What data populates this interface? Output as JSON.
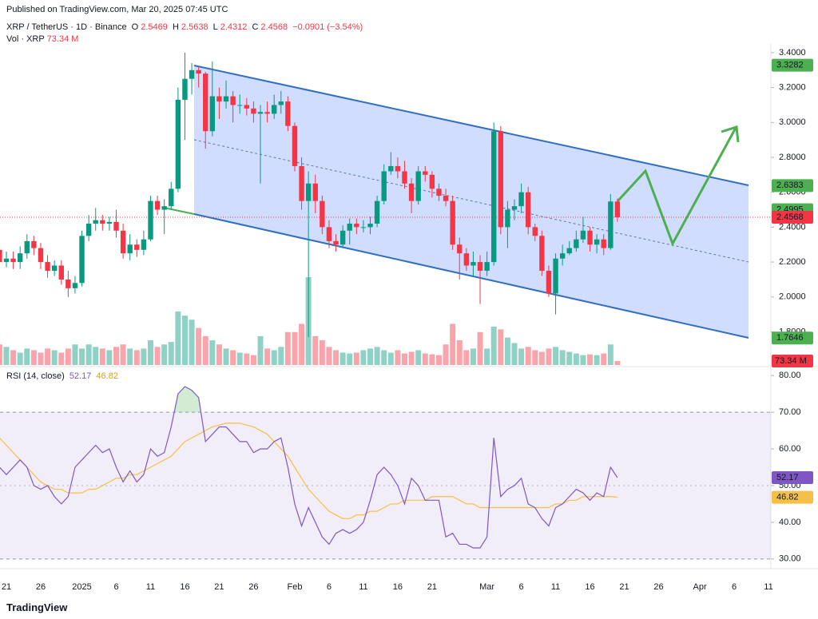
{
  "published": "Published on TradingView.com, Mar 20, 2025 07:45 UTC",
  "footer": "TradingView",
  "chart_data": [
    {
      "type": "candlestick",
      "title": "XRP / TetherUS · 1D · Binance",
      "ohlc_letters": [
        "O",
        "H",
        "L",
        "C"
      ],
      "change": "−0.0901 (−3.54%)",
      "up_color": "#089981",
      "down_color": "#f23645",
      "x": [
        "2024-12-20",
        "2024-12-21",
        "2024-12-22",
        "2024-12-23",
        "2024-12-24",
        "2024-12-25",
        "2024-12-26",
        "2024-12-27",
        "2024-12-28",
        "2024-12-29",
        "2024-12-30",
        "2024-12-31",
        "2025-01-01",
        "2025-01-02",
        "2025-01-03",
        "2025-01-04",
        "2025-01-05",
        "2025-01-06",
        "2025-01-07",
        "2025-01-08",
        "2025-01-09",
        "2025-01-10",
        "2025-01-11",
        "2025-01-12",
        "2025-01-13",
        "2025-01-14",
        "2025-01-15",
        "2025-01-16",
        "2025-01-17",
        "2025-01-18",
        "2025-01-19",
        "2025-01-20",
        "2025-01-21",
        "2025-01-22",
        "2025-01-23",
        "2025-01-24",
        "2025-01-25",
        "2025-01-26",
        "2025-01-27",
        "2025-01-28",
        "2025-01-29",
        "2025-01-30",
        "2025-01-31",
        "2025-02-01",
        "2025-02-02",
        "2025-02-03",
        "2025-02-04",
        "2025-02-05",
        "2025-02-06",
        "2025-02-07",
        "2025-02-08",
        "2025-02-09",
        "2025-02-10",
        "2025-02-11",
        "2025-02-12",
        "2025-02-13",
        "2025-02-14",
        "2025-02-15",
        "2025-02-16",
        "2025-02-17",
        "2025-02-18",
        "2025-02-19",
        "2025-02-20",
        "2025-02-21",
        "2025-02-22",
        "2025-02-23",
        "2025-02-24",
        "2025-02-25",
        "2025-02-26",
        "2025-02-27",
        "2025-02-28",
        "2025-03-01",
        "2025-03-02",
        "2025-03-03",
        "2025-03-04",
        "2025-03-05",
        "2025-03-06",
        "2025-03-07",
        "2025-03-08",
        "2025-03-09",
        "2025-03-10",
        "2025-03-11",
        "2025-03-12",
        "2025-03-13",
        "2025-03-14",
        "2025-03-15",
        "2025-03-16",
        "2025-03-17",
        "2025-03-18",
        "2025-03-19",
        "2025-03-20"
      ],
      "open": [
        2.27,
        2.2,
        2.22,
        2.2,
        2.25,
        2.32,
        2.28,
        2.2,
        2.15,
        2.18,
        2.1,
        2.05,
        2.08,
        2.35,
        2.42,
        2.44,
        2.42,
        2.43,
        2.38,
        2.25,
        2.3,
        2.27,
        2.33,
        2.55,
        2.5,
        2.52,
        2.62,
        3.13,
        3.25,
        3.3,
        3.28,
        2.95,
        3.15,
        3.12,
        3.15,
        3.1,
        3.1,
        3.08,
        3.05,
        3.06,
        3.05,
        3.1,
        3.12,
        2.98,
        2.75,
        2.55,
        2.65,
        2.55,
        2.4,
        2.32,
        2.3,
        2.38,
        2.42,
        2.4,
        2.4,
        2.42,
        2.55,
        2.72,
        2.75,
        2.72,
        2.65,
        2.55,
        2.72,
        2.7,
        2.62,
        2.58,
        2.55,
        2.3,
        2.25,
        2.18,
        2.2,
        2.15,
        2.2,
        2.95,
        2.4,
        2.5,
        2.52,
        2.6,
        2.4,
        2.35,
        2.15,
        2.02,
        2.22,
        2.25,
        2.28,
        2.33,
        2.38,
        2.3,
        2.33,
        2.28,
        2.5469
      ],
      "high": [
        2.3,
        2.26,
        2.26,
        2.29,
        2.36,
        2.35,
        2.31,
        2.24,
        2.21,
        2.21,
        2.15,
        2.12,
        2.38,
        2.47,
        2.51,
        2.47,
        2.46,
        2.5,
        2.42,
        2.36,
        2.33,
        2.38,
        2.58,
        2.58,
        2.56,
        2.66,
        3.2,
        3.4,
        3.34,
        3.32,
        3.29,
        3.35,
        3.2,
        3.24,
        3.18,
        3.16,
        3.14,
        3.12,
        3.1,
        3.12,
        3.16,
        3.18,
        3.15,
        3.0,
        2.8,
        2.72,
        2.7,
        2.58,
        2.44,
        2.36,
        2.41,
        2.45,
        2.45,
        2.44,
        2.46,
        2.58,
        2.76,
        2.83,
        2.8,
        2.78,
        2.68,
        2.75,
        2.75,
        2.72,
        2.65,
        2.62,
        2.58,
        2.34,
        2.28,
        2.26,
        2.24,
        2.26,
        3.0,
        2.98,
        2.55,
        2.56,
        2.65,
        2.63,
        2.42,
        2.38,
        2.18,
        2.25,
        2.3,
        2.32,
        2.38,
        2.46,
        2.4,
        2.36,
        2.36,
        2.59,
        2.5638
      ],
      "low": [
        2.16,
        2.17,
        2.16,
        2.16,
        2.22,
        2.24,
        2.16,
        2.11,
        2.12,
        2.07,
        2.0,
        2.02,
        2.06,
        2.32,
        2.38,
        2.38,
        2.38,
        2.34,
        2.22,
        2.21,
        2.23,
        2.24,
        2.32,
        2.47,
        2.36,
        2.5,
        2.6,
        2.9,
        3.16,
        3.2,
        2.85,
        2.92,
        3.02,
        3.08,
        3.0,
        3.05,
        3.04,
        3.0,
        2.65,
        3.0,
        3.02,
        3.05,
        2.95,
        2.72,
        2.5,
        1.77,
        2.48,
        2.36,
        2.28,
        2.26,
        2.28,
        2.3,
        2.36,
        2.37,
        2.36,
        2.4,
        2.53,
        2.7,
        2.68,
        2.62,
        2.48,
        2.53,
        2.66,
        2.57,
        2.55,
        2.52,
        2.27,
        2.1,
        2.15,
        2.12,
        1.96,
        2.12,
        2.18,
        2.36,
        2.28,
        2.44,
        2.48,
        2.36,
        2.32,
        2.12,
        2.0,
        1.9,
        2.18,
        2.24,
        2.26,
        2.31,
        2.26,
        2.25,
        2.24,
        2.27,
        2.4312
      ],
      "close": [
        2.2,
        2.22,
        2.2,
        2.25,
        2.32,
        2.28,
        2.2,
        2.15,
        2.18,
        2.1,
        2.05,
        2.08,
        2.35,
        2.42,
        2.44,
        2.42,
        2.43,
        2.38,
        2.25,
        2.3,
        2.27,
        2.33,
        2.55,
        2.5,
        2.52,
        2.62,
        3.13,
        3.25,
        3.3,
        3.28,
        2.95,
        3.15,
        3.12,
        3.15,
        3.1,
        3.1,
        3.08,
        3.05,
        3.06,
        3.05,
        3.1,
        3.12,
        2.98,
        2.75,
        2.55,
        2.65,
        2.55,
        2.4,
        2.32,
        2.3,
        2.38,
        2.42,
        2.4,
        2.4,
        2.42,
        2.55,
        2.72,
        2.75,
        2.72,
        2.65,
        2.55,
        2.72,
        2.7,
        2.62,
        2.58,
        2.55,
        2.3,
        2.25,
        2.18,
        2.2,
        2.15,
        2.2,
        2.95,
        2.4,
        2.5,
        2.52,
        2.6,
        2.4,
        2.35,
        2.15,
        2.02,
        2.22,
        2.25,
        2.28,
        2.33,
        2.38,
        2.3,
        2.33,
        2.28,
        2.5469,
        2.4568
      ],
      "volume": {
        "name": "Vol · XRP",
        "last_label": "73.34 M",
        "values": [
          375,
          330,
          270,
          225,
          300,
          270,
          225,
          300,
          270,
          225,
          300,
          375,
          300,
          375,
          330,
          300,
          270,
          330,
          375,
          300,
          270,
          300,
          450,
          330,
          375,
          420,
          975,
          900,
          825,
          675,
          525,
          450,
          375,
          300,
          270,
          225,
          210,
          180,
          525,
          300,
          270,
          330,
          600,
          600,
          750,
          1600,
          525,
          450,
          330,
          270,
          225,
          210,
          225,
          270,
          300,
          330,
          270,
          225,
          270,
          210,
          240,
          270,
          210,
          195,
          180,
          375,
          750,
          450,
          270,
          300,
          600,
          300,
          700,
          650,
          500,
          400,
          300,
          330,
          270,
          240,
          300,
          330,
          270,
          240,
          210,
          180,
          195,
          180,
          210,
          375,
          73.34
        ]
      },
      "price_labels": [
        {
          "value": 3.3282,
          "color": "#4caf50"
        },
        {
          "value": 2.6383,
          "color": "#4caf50"
        },
        {
          "value": 2.4995,
          "color": "#4caf50"
        },
        {
          "value": 2.4568,
          "color": "#f23645"
        },
        {
          "value": 1.7646,
          "color": "#4caf50"
        }
      ],
      "ylim": [
        1.61,
        3.45
      ],
      "yticks": [
        {
          "value": 1.8,
          "label": "1.8000"
        },
        {
          "value": 2.0,
          "label": "2.0000"
        },
        {
          "value": 2.2,
          "label": "2.2000"
        },
        {
          "value": 2.4,
          "label": "2.4000"
        },
        {
          "value": 2.6,
          "label": "2.6000"
        },
        {
          "value": 2.8,
          "label": "2.8000"
        },
        {
          "value": 3.0,
          "label": "3.0000"
        },
        {
          "value": 3.2,
          "label": "3.2000"
        },
        {
          "value": 3.4,
          "label": "3.4000"
        }
      ],
      "xticks": [
        {
          "value": "2024-12-21",
          "label": "21"
        },
        {
          "value": "2024-12-26",
          "label": "26"
        },
        {
          "value": "2025-01-01",
          "label": "2025"
        },
        {
          "value": "2025-01-06",
          "label": "6"
        },
        {
          "value": "2025-01-11",
          "label": "11"
        },
        {
          "value": "2025-01-16",
          "label": "16"
        },
        {
          "value": "2025-01-21",
          "label": "21"
        },
        {
          "value": "2025-01-26",
          "label": "26"
        },
        {
          "value": "2025-02-01",
          "label": "Feb"
        },
        {
          "value": "2025-02-06",
          "label": "6"
        },
        {
          "value": "2025-02-11",
          "label": "11"
        },
        {
          "value": "2025-02-16",
          "label": "16"
        },
        {
          "value": "2025-02-21",
          "label": "21"
        },
        {
          "value": "2025-03-01",
          "label": "Mar"
        },
        {
          "value": "2025-03-06",
          "label": "6"
        },
        {
          "value": "2025-03-11",
          "label": "11"
        },
        {
          "value": "2025-03-16",
          "label": "16"
        },
        {
          "value": "2025-03-21",
          "label": "21"
        },
        {
          "value": "2025-03-26",
          "label": "26"
        },
        {
          "value": "2025-04-01",
          "label": "Apr"
        },
        {
          "value": "2025-04-06",
          "label": "6"
        },
        {
          "value": "2025-04-11",
          "label": "11"
        }
      ]
    },
    {
      "type": "line",
      "title": "RSI (14, close)",
      "series": [
        {
          "name": "RSI",
          "color": "#7e57c2",
          "values": [
            55,
            53,
            55,
            57,
            55,
            50,
            49,
            50,
            47,
            45,
            47,
            55,
            57,
            59,
            61,
            59,
            60,
            55,
            51,
            54,
            51,
            53,
            60,
            58,
            59,
            66,
            75,
            77,
            76,
            74,
            62,
            64,
            66,
            66,
            64,
            62,
            62,
            59,
            60,
            60,
            62,
            63,
            55,
            45,
            39,
            44,
            40,
            36,
            34,
            37,
            38,
            37,
            38,
            40,
            46,
            53,
            55,
            53,
            50,
            45,
            52,
            50,
            46,
            46,
            46,
            36,
            37,
            34,
            34,
            33,
            33,
            36,
            63,
            47,
            49,
            50,
            52,
            45,
            44,
            41,
            39,
            44,
            45,
            47,
            49,
            48,
            46,
            48,
            47,
            55,
            52.17
          ]
        },
        {
          "name": "RSI-based MA",
          "color": "#f5c048",
          "values": [
            63,
            61,
            59,
            57,
            55,
            53,
            51,
            50,
            49,
            49,
            48,
            48,
            48,
            49,
            49,
            50,
            51,
            52,
            52,
            53,
            53,
            54,
            55,
            56,
            57,
            58,
            60,
            62,
            63,
            64,
            65,
            66,
            66.5,
            67,
            67,
            67,
            66.5,
            66,
            65,
            64,
            62,
            60,
            58,
            55,
            52,
            49,
            47,
            45,
            43,
            42,
            41,
            41,
            42,
            42,
            43,
            43,
            44,
            45,
            45,
            46,
            46,
            46,
            46,
            47,
            47,
            47,
            47,
            46,
            45,
            45,
            44,
            44,
            44,
            44,
            44,
            44,
            44,
            44,
            44,
            44,
            44,
            45,
            45,
            46,
            46,
            47,
            47,
            47,
            47,
            47,
            46.82
          ]
        }
      ],
      "bands": [
        30,
        70
      ],
      "midline": 50,
      "ylim": [
        28,
        82
      ],
      "yticks": [
        {
          "value": 30,
          "label": "30.00"
        },
        {
          "value": 40,
          "label": "40.00"
        },
        {
          "value": 50,
          "label": "50.00"
        },
        {
          "value": 60,
          "label": "60.00"
        },
        {
          "value": 70,
          "label": "70.00"
        },
        {
          "value": 80,
          "label": "80.00"
        }
      ]
    }
  ]
}
